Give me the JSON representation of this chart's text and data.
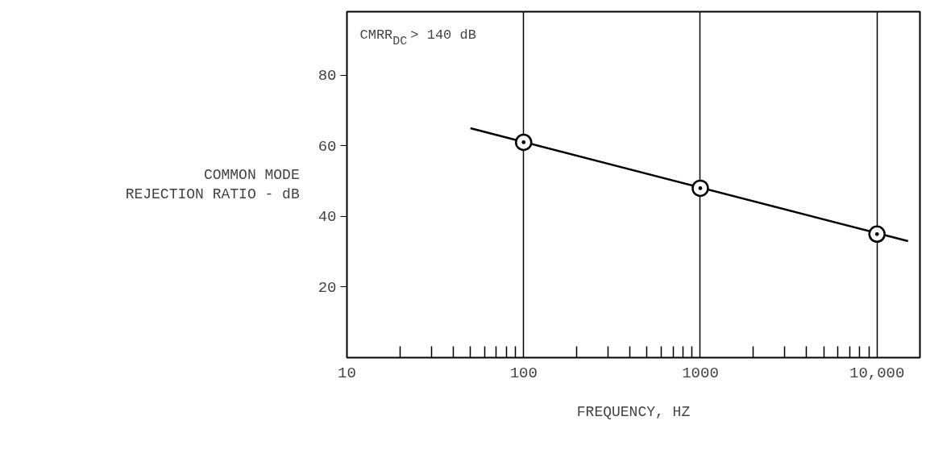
{
  "chart_data": {
    "type": "line",
    "xlabel": "FREQUENCY, HZ",
    "ylabel": "COMMON MODE\nREJECTION RATIO - dB",
    "log": "x",
    "grid": "x",
    "xlim": [
      10,
      17500
    ],
    "ylim": [
      0,
      98
    ],
    "xticks": [
      10,
      100,
      1000,
      {
        "value": 10000,
        "label": "10,000"
      }
    ],
    "yticks": [
      20,
      40,
      60,
      80
    ],
    "annotations": [
      "CMRR$_{DC}$ > 140 dB"
    ],
    "series": [
      {
        "color": "#000000",
        "x": [
          50,
          15000
        ],
        "values": [
          65,
          33
        ],
        "marker": "none"
      },
      {
        "type": "scatter",
        "color": "#000000",
        "x": [
          100,
          1000,
          10000
        ],
        "values": [
          61,
          48,
          35
        ],
        "marker": "circle"
      }
    ]
  }
}
